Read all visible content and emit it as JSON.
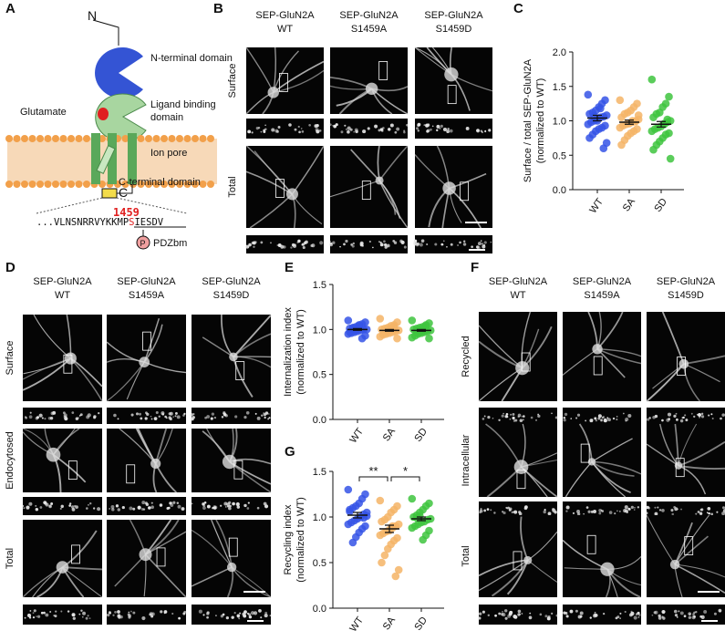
{
  "letters": [
    "A",
    "B",
    "C",
    "D",
    "E",
    "F",
    "G"
  ],
  "diagram": {
    "n_label": "N",
    "n_domain": "N-terminal domain",
    "glutamate": "Glutamate",
    "lbd": [
      "Ligand binding",
      "domain"
    ],
    "pore": "Ion pore",
    "ctd": "C-terminal domain",
    "c_label": "C",
    "site": "1459",
    "sequence": [
      "...VLNSNRRVYKKMP",
      "S",
      "IESDV"
    ],
    "phospho": "P",
    "pdz": "PDZbm"
  },
  "micrographs": {
    "B": {
      "columns": [
        [
          "SEP-GluN2A",
          "WT"
        ],
        [
          "SEP-GluN2A",
          "S1459A"
        ],
        [
          "SEP-GluN2A",
          "S1459D"
        ]
      ],
      "rows": [
        "Surface",
        "Total"
      ]
    },
    "D": {
      "columns": [
        [
          "SEP-GluN2A",
          "WT"
        ],
        [
          "SEP-GluN2A",
          "S1459A"
        ],
        [
          "SEP-GluN2A",
          "S1459D"
        ]
      ],
      "rows": [
        "Surface",
        "Endocytosed",
        "Total"
      ]
    },
    "F": {
      "columns": [
        [
          "SEP-GluN2A",
          "WT"
        ],
        [
          "SEP-GluN2A",
          "S1459A"
        ],
        [
          "SEP-GluN2A",
          "S1459D"
        ]
      ],
      "rows": [
        "Recycled",
        "Intracellular",
        "Total"
      ]
    }
  },
  "chart_data": [
    {
      "type": "strip",
      "ylabel": [
        "Surface / total SEP-GluN2A",
        "(normalized to WT)"
      ],
      "categories": [
        "WT",
        "SA",
        "SD"
      ],
      "ylim": [
        0,
        2
      ],
      "yticks": [
        {
          "value": 0,
          "label": "0.0"
        },
        {
          "value": 0.5,
          "label": "0.5"
        },
        {
          "value": 1,
          "label": "1.0"
        },
        {
          "value": 1.5,
          "label": "1.5"
        },
        {
          "value": 2,
          "label": "2.0"
        }
      ],
      "groups": [
        {
          "color": "#3553e6",
          "mean": 1.04,
          "sem": 0.04,
          "values": [
            1.38,
            1.3,
            1.25,
            1.2,
            1.15,
            1.12,
            1.1,
            1.08,
            1.06,
            1.05,
            1.03,
            1.0,
            0.98,
            0.95,
            0.93,
            0.9,
            0.88,
            0.85,
            0.8,
            0.75,
            0.68,
            0.6,
            1.18,
            1.0,
            1.07
          ]
        },
        {
          "color": "#f5b466",
          "mean": 0.98,
          "sem": 0.03,
          "values": [
            1.3,
            1.25,
            1.2,
            1.15,
            1.12,
            1.1,
            1.05,
            1.02,
            1.0,
            0.98,
            0.96,
            0.95,
            0.93,
            0.9,
            0.88,
            0.85,
            0.82,
            0.78,
            0.72,
            0.65,
            1.08,
            0.99,
            1.0
          ]
        },
        {
          "color": "#3ec43e",
          "mean": 0.95,
          "sem": 0.04,
          "values": [
            1.6,
            1.35,
            1.25,
            1.2,
            1.12,
            1.1,
            1.05,
            1.0,
            0.98,
            0.95,
            0.92,
            0.9,
            0.88,
            0.85,
            0.82,
            0.8,
            0.75,
            0.7,
            0.65,
            0.58,
            0.45,
            1.02,
            0.96
          ]
        }
      ]
    },
    {
      "type": "strip",
      "ylabel": [
        "Internalization index",
        "(normalized to WT)"
      ],
      "categories": [
        "WT",
        "SA",
        "SD"
      ],
      "ylim": [
        0,
        1.5
      ],
      "yticks": [
        {
          "value": 0,
          "label": "0.0"
        },
        {
          "value": 0.5,
          "label": "0.5"
        },
        {
          "value": 1,
          "label": "1.0"
        },
        {
          "value": 1.5,
          "label": "1.5"
        }
      ],
      "groups": [
        {
          "color": "#3553e6",
          "mean": 1.0,
          "sem": 0.01,
          "values": [
            1.1,
            1.08,
            1.06,
            1.05,
            1.03,
            1.02,
            1.01,
            1.0,
            1.0,
            0.99,
            0.98,
            0.97,
            0.96,
            0.95,
            0.93,
            0.9,
            1.04,
            0.99,
            1.01,
            0.97
          ]
        },
        {
          "color": "#f5b466",
          "mean": 0.99,
          "sem": 0.01,
          "values": [
            1.12,
            1.08,
            1.05,
            1.04,
            1.02,
            1.01,
            1.0,
            0.99,
            0.98,
            0.97,
            0.96,
            0.95,
            0.94,
            0.92,
            0.9,
            1.03,
            1.0,
            0.98
          ]
        },
        {
          "color": "#3ec43e",
          "mean": 0.99,
          "sem": 0.01,
          "values": [
            1.1,
            1.07,
            1.05,
            1.03,
            1.02,
            1.01,
            1.0,
            0.99,
            0.98,
            0.97,
            0.96,
            0.95,
            0.93,
            0.91,
            0.9,
            1.04,
            1.0,
            0.98,
            0.97
          ]
        }
      ]
    },
    {
      "type": "strip",
      "ylabel": [
        "Recycling index",
        "(normalized to WT)"
      ],
      "categories": [
        "WT",
        "SA",
        "SD"
      ],
      "ylim": [
        0,
        1.5
      ],
      "yticks": [
        {
          "value": 0,
          "label": "0.0"
        },
        {
          "value": 0.5,
          "label": "0.5"
        },
        {
          "value": 1,
          "label": "1.0"
        },
        {
          "value": 1.5,
          "label": "1.5"
        }
      ],
      "significance": [
        "**",
        "*"
      ],
      "groups": [
        {
          "color": "#3553e6",
          "mean": 1.02,
          "sem": 0.03,
          "values": [
            1.3,
            1.25,
            1.2,
            1.15,
            1.12,
            1.1,
            1.08,
            1.05,
            1.03,
            1.0,
            0.98,
            0.96,
            0.94,
            0.92,
            0.9,
            0.87,
            0.83,
            0.78,
            0.72,
            1.06,
            1.01,
            0.99
          ]
        },
        {
          "color": "#f5b466",
          "mean": 0.87,
          "sem": 0.04,
          "values": [
            1.18,
            1.12,
            1.08,
            1.05,
            1.0,
            0.97,
            0.95,
            0.92,
            0.9,
            0.88,
            0.86,
            0.84,
            0.82,
            0.8,
            0.77,
            0.74,
            0.7,
            0.65,
            0.58,
            0.5,
            0.42,
            0.35,
            0.9,
            0.85
          ]
        },
        {
          "color": "#3ec43e",
          "mean": 0.98,
          "sem": 0.02,
          "values": [
            1.2,
            1.15,
            1.12,
            1.08,
            1.05,
            1.02,
            1.0,
            0.98,
            0.97,
            0.95,
            0.94,
            0.92,
            0.9,
            0.88,
            0.85,
            0.8,
            0.75,
            1.01,
            0.99
          ]
        }
      ]
    }
  ]
}
